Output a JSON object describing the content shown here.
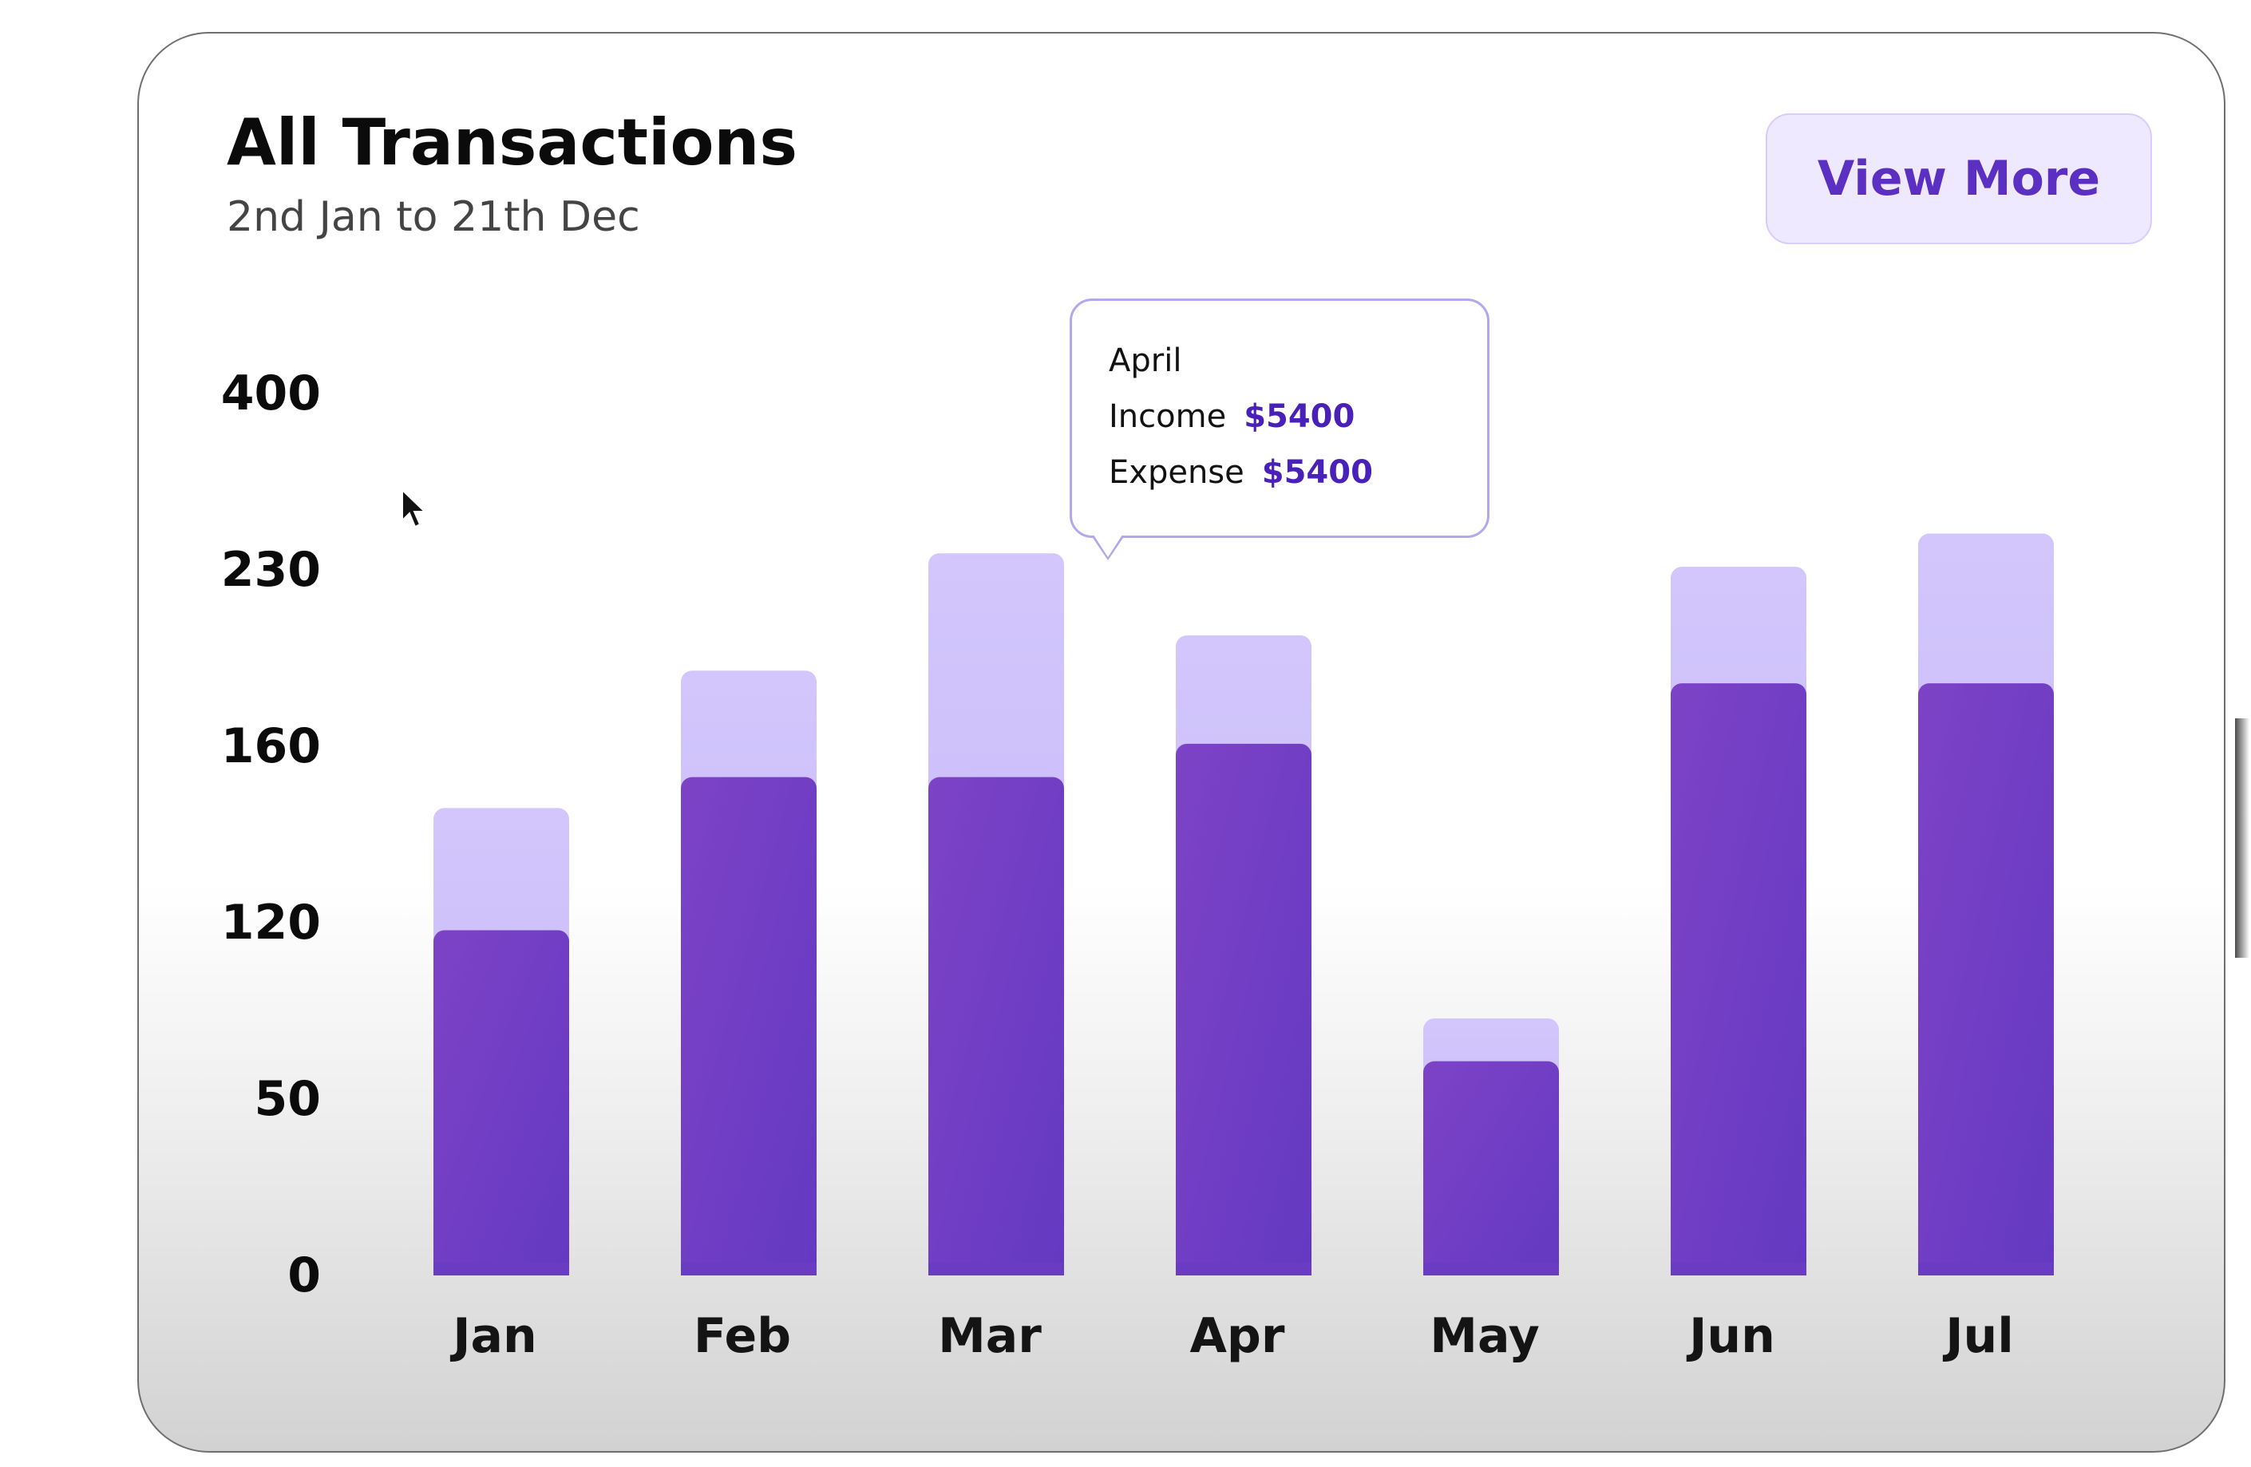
{
  "card": {
    "title": "All Transactions",
    "subtitle": "2nd Jan to 21th Dec",
    "view_more_label": "View More"
  },
  "tooltip": {
    "month": "April",
    "income_label": "Income",
    "income_value": "$5400",
    "expense_label": "Expense",
    "expense_value": "$5400"
  },
  "colors": {
    "bar_dark": "#6c3ec9",
    "bar_light": "#cfc2fb",
    "accent": "#5a2fc2"
  },
  "chart_data": {
    "type": "bar",
    "stacked": true,
    "categories": [
      "Jan",
      "Feb",
      "Mar",
      "Apr",
      "May",
      "Jun",
      "Jul"
    ],
    "y_ticks": [
      "0",
      "50",
      "120",
      "160",
      "230",
      "400"
    ],
    "series": [
      {
        "values": [
          117,
          153,
          153,
          161,
          65,
          185,
          185
        ]
      },
      {
        "values": [
          29,
          37,
          93,
          43,
          17,
          48,
          80
        ]
      }
    ],
    "grid": false,
    "legend": "none"
  }
}
